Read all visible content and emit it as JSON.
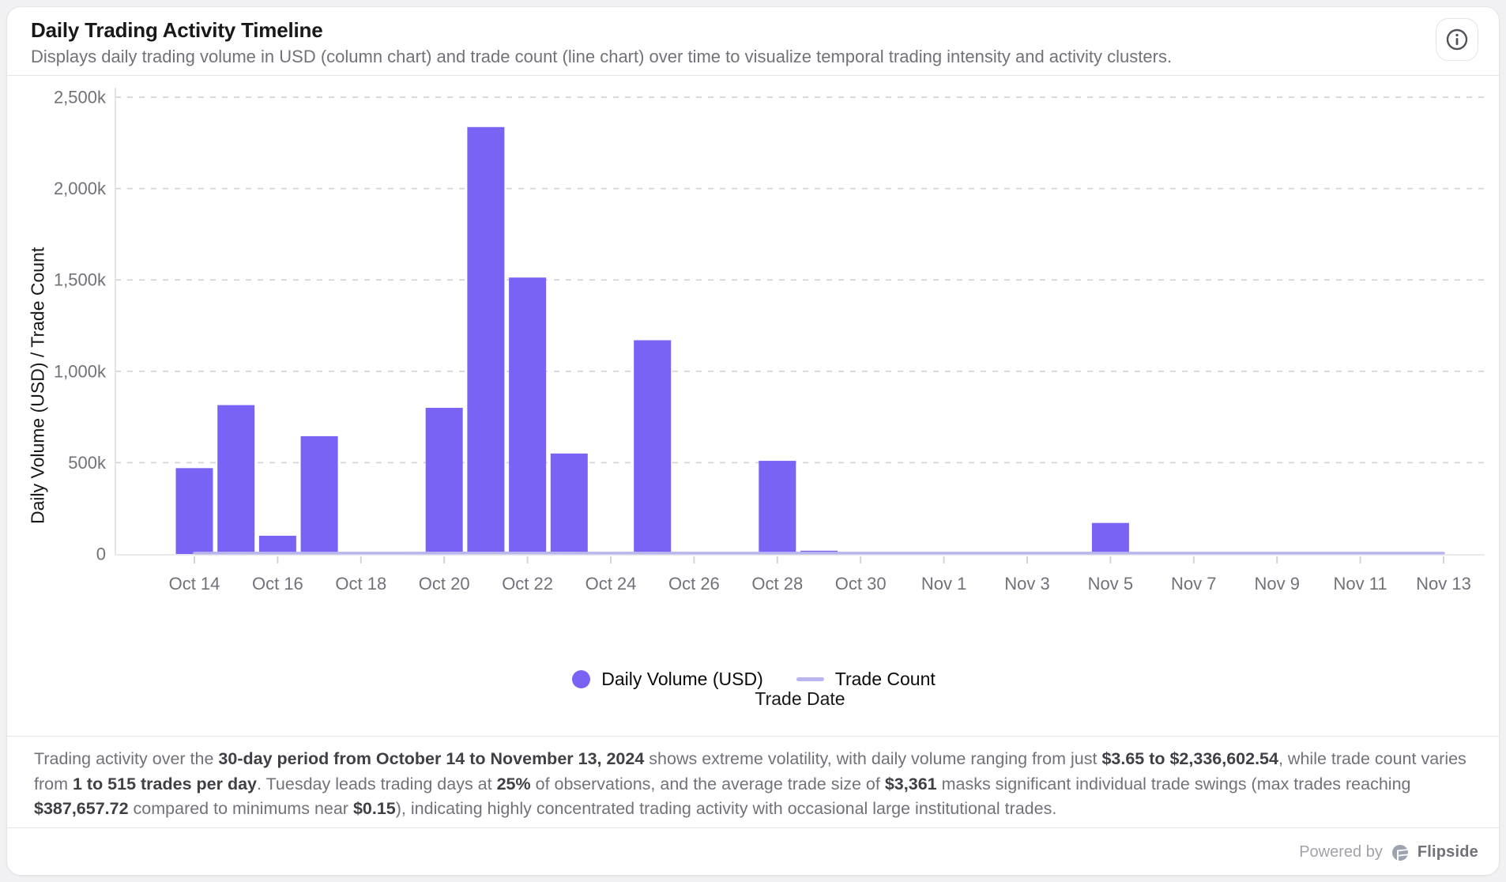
{
  "header": {
    "title": "Daily Trading Activity Timeline",
    "subtitle": "Displays daily trading volume in USD (column chart) and trade count (line chart) over time to visualize temporal trading intensity and activity clusters."
  },
  "chart_data": {
    "type": "bar",
    "title": "Daily Trading Activity Timeline",
    "xlabel": "Trade Date",
    "ylabel": "Daily Volume (USD) / Trade Count",
    "ylim": [
      0,
      2500000
    ],
    "y_ticks": [
      "0",
      "500k",
      "1,000k",
      "1,500k",
      "2,000k",
      "2,500k"
    ],
    "x_tick_step": 2,
    "grid": "dashed-horizontal",
    "legend_position": "bottom",
    "x": [
      "Oct 14",
      "Oct 15",
      "Oct 16",
      "Oct 17",
      "Oct 18",
      "Oct 19",
      "Oct 20",
      "Oct 21",
      "Oct 22",
      "Oct 23",
      "Oct 24",
      "Oct 25",
      "Oct 26",
      "Oct 27",
      "Oct 28",
      "Oct 29",
      "Oct 30",
      "Oct 31",
      "Nov 1",
      "Nov 2",
      "Nov 3",
      "Nov 4",
      "Nov 5",
      "Nov 6",
      "Nov 7",
      "Nov 8",
      "Nov 9",
      "Nov 10",
      "Nov 11",
      "Nov 12",
      "Nov 13"
    ],
    "series": [
      {
        "name": "Daily Volume (USD)",
        "type": "bar",
        "color": "#7863F4",
        "values": [
          470000,
          815000,
          100000,
          645000,
          2500,
          1200,
          800000,
          2336602.54,
          1513000,
          550000,
          3000,
          1170000,
          2000,
          1500,
          510000,
          18000,
          1000,
          800,
          600,
          500,
          400,
          300,
          170000,
          250,
          200,
          150,
          100,
          50,
          25,
          10,
          3.65
        ]
      },
      {
        "name": "Trade Count",
        "type": "line",
        "color": "#B9B5EE",
        "values": [
          118,
          186,
          42,
          150,
          6,
          3,
          214,
          515,
          342,
          160,
          9,
          263,
          7,
          4,
          139,
          25,
          5,
          3,
          2,
          2,
          1,
          1,
          58,
          2,
          1,
          1,
          2,
          1,
          1,
          1,
          1
        ]
      }
    ]
  },
  "legend": {
    "volume_label": "Daily Volume (USD)",
    "count_label": "Trade Count"
  },
  "summary": {
    "segments": [
      {
        "t": "Trading activity over the ",
        "b": false
      },
      {
        "t": "30-day period from October 14 to November 13, 2024",
        "b": true
      },
      {
        "t": " shows extreme volatility, with daily volume ranging from just ",
        "b": false
      },
      {
        "t": "$3.65 to $2,336,602.54",
        "b": true
      },
      {
        "t": ", while trade count varies from ",
        "b": false
      },
      {
        "t": "1 to 515 trades per day",
        "b": true
      },
      {
        "t": ". Tuesday leads trading days at ",
        "b": false
      },
      {
        "t": "25%",
        "b": true
      },
      {
        "t": " of observations, and the average trade size of ",
        "b": false
      },
      {
        "t": "$3,361",
        "b": true
      },
      {
        "t": " masks significant individual trade swings (max trades reaching ",
        "b": false
      },
      {
        "t": "$387,657.72",
        "b": true
      },
      {
        "t": " compared to minimums near ",
        "b": false
      },
      {
        "t": "$0.15",
        "b": true
      },
      {
        "t": "), indicating highly concentrated trading activity with occasional large institutional trades.",
        "b": false
      }
    ]
  },
  "footer": {
    "powered_by": "Powered by",
    "brand": "Flipside"
  },
  "colors": {
    "bar": "#7863F4",
    "line": "#B9B5EE",
    "grid": "#d4d4d8",
    "axis": "#e4e4e7",
    "tick_text": "#71717a",
    "accent_text": "#18181b"
  }
}
